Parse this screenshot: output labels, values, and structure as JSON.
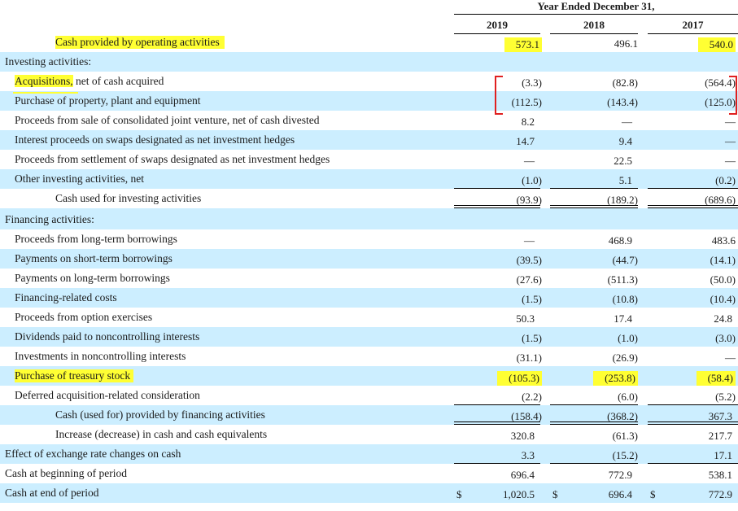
{
  "header": {
    "group_title": "Year Ended December 31,",
    "years": [
      "2019",
      "2018",
      "2017"
    ]
  },
  "rows": [
    {
      "label": "Cash provided by operating activities",
      "values": [
        "573.1",
        "496.1",
        "540.0"
      ]
    },
    {
      "label": "Investing activities:",
      "values": [
        "",
        "",
        ""
      ]
    },
    {
      "label": "Acquisitions,",
      "label_rest": " net of cash acquired",
      "values": [
        "(3.3)",
        "(82.8)",
        "(564.4)"
      ]
    },
    {
      "label": "Purchase of property, plant and equipment",
      "values": [
        "(112.5)",
        "(143.4)",
        "(125.0)"
      ]
    },
    {
      "label": "Proceeds from sale of consolidated joint venture, net of cash divested",
      "values": [
        "8.2",
        "—",
        "—"
      ]
    },
    {
      "label": "Interest proceeds on swaps designated as net investment hedges",
      "values": [
        "14.7",
        "9.4",
        "—"
      ]
    },
    {
      "label": "Proceeds from settlement of swaps designated as net investment hedges",
      "values": [
        "—",
        "22.5",
        "—"
      ]
    },
    {
      "label": "Other investing activities, net",
      "values": [
        "(1.0)",
        "5.1",
        "(0.2)"
      ]
    },
    {
      "label": "Cash used for investing activities",
      "values": [
        "(93.9)",
        "(189.2)",
        "(689.6)"
      ]
    },
    {
      "label": "Financing activities:",
      "values": [
        "",
        "",
        ""
      ]
    },
    {
      "label": "Proceeds from long-term borrowings",
      "values": [
        "—",
        "468.9",
        "483.6"
      ]
    },
    {
      "label": "Payments on short-term borrowings",
      "values": [
        "(39.5)",
        "(44.7)",
        "(14.1)"
      ]
    },
    {
      "label": "Payments on long-term borrowings",
      "values": [
        "(27.6)",
        "(511.3)",
        "(50.0)"
      ]
    },
    {
      "label": "Financing-related costs",
      "values": [
        "(1.5)",
        "(10.8)",
        "(10.4)"
      ]
    },
    {
      "label": "Proceeds from option exercises",
      "values": [
        "50.3",
        "17.4",
        "24.8"
      ]
    },
    {
      "label": "Dividends paid to noncontrolling interests",
      "values": [
        "(1.5)",
        "(1.0)",
        "(3.0)"
      ]
    },
    {
      "label": "Investments in noncontrolling interests",
      "values": [
        "(31.1)",
        "(26.9)",
        "—"
      ]
    },
    {
      "label": "Purchase of treasury stock",
      "values": [
        "(105.3)",
        "(253.8)",
        "(58.4)"
      ]
    },
    {
      "label": "Deferred acquisition-related consideration",
      "values": [
        "(2.2)",
        "(6.0)",
        "(5.2)"
      ]
    },
    {
      "label": "Cash (used for) provided by financing activities",
      "values": [
        "(158.4)",
        "(368.2)",
        "367.3"
      ]
    },
    {
      "label": "Increase (decrease) in cash and cash equivalents",
      "values": [
        "320.8",
        "(61.3)",
        "217.7"
      ]
    },
    {
      "label": "Effect of exchange rate changes on cash",
      "values": [
        "3.3",
        "(15.2)",
        "17.1"
      ]
    },
    {
      "label": "Cash at beginning of period",
      "values": [
        "696.4",
        "772.9",
        "538.1"
      ]
    },
    {
      "label": "Cash at end of period",
      "currency": "$",
      "values": [
        "1,020.5",
        "696.4",
        "772.9"
      ]
    }
  ],
  "colors": {
    "row_shade": "#cceeff",
    "highlight": "#ffff33",
    "annotation_bracket": "#e02020"
  }
}
